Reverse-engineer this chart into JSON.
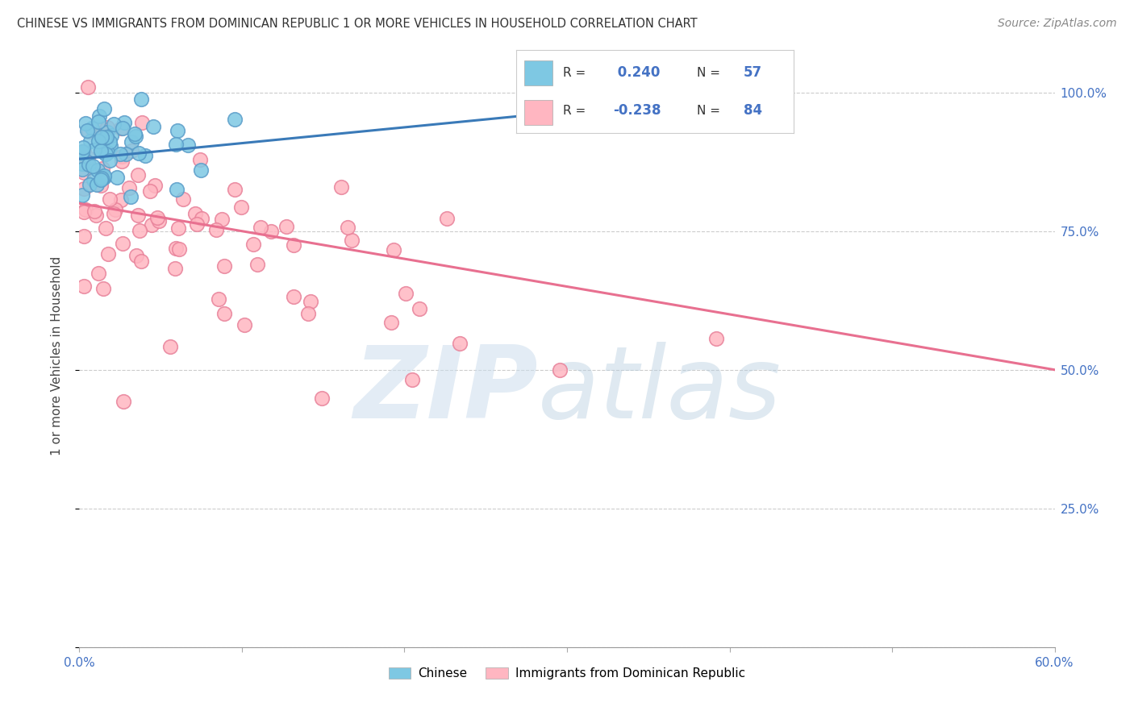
{
  "title": "CHINESE VS IMMIGRANTS FROM DOMINICAN REPUBLIC 1 OR MORE VEHICLES IN HOUSEHOLD CORRELATION CHART",
  "source": "Source: ZipAtlas.com",
  "ylabel": "1 or more Vehicles in Household",
  "xmin": 0.0,
  "xmax": 0.6,
  "ymin": 0.0,
  "ymax": 1.05,
  "yticks": [
    0.0,
    0.25,
    0.5,
    0.75,
    1.0
  ],
  "ytick_labels": [
    "",
    "25.0%",
    "50.0%",
    "75.0%",
    "100.0%"
  ],
  "xtick_positions": [
    0.0,
    0.1,
    0.2,
    0.3,
    0.4,
    0.5,
    0.6
  ],
  "xtick_labels": [
    "0.0%",
    "",
    "",
    "",
    "",
    "",
    "60.0%"
  ],
  "blue_R": 0.24,
  "blue_N": 57,
  "pink_R": -0.238,
  "pink_N": 84,
  "blue_color": "#7ec8e3",
  "pink_color": "#ffb6c1",
  "blue_edge_color": "#5b9dc9",
  "pink_edge_color": "#e8829a",
  "blue_line_color": "#3a7ab8",
  "pink_line_color": "#e87090",
  "axis_label_color": "#4472c4",
  "title_color": "#333333",
  "source_color": "#888888",
  "grid_color": "#cccccc",
  "blue_line_x0": 0.0,
  "blue_line_x1": 0.28,
  "blue_line_y0": 0.88,
  "blue_line_y1": 0.96,
  "pink_line_x0": 0.0,
  "pink_line_x1": 0.6,
  "pink_line_y0": 0.8,
  "pink_line_y1": 0.5
}
